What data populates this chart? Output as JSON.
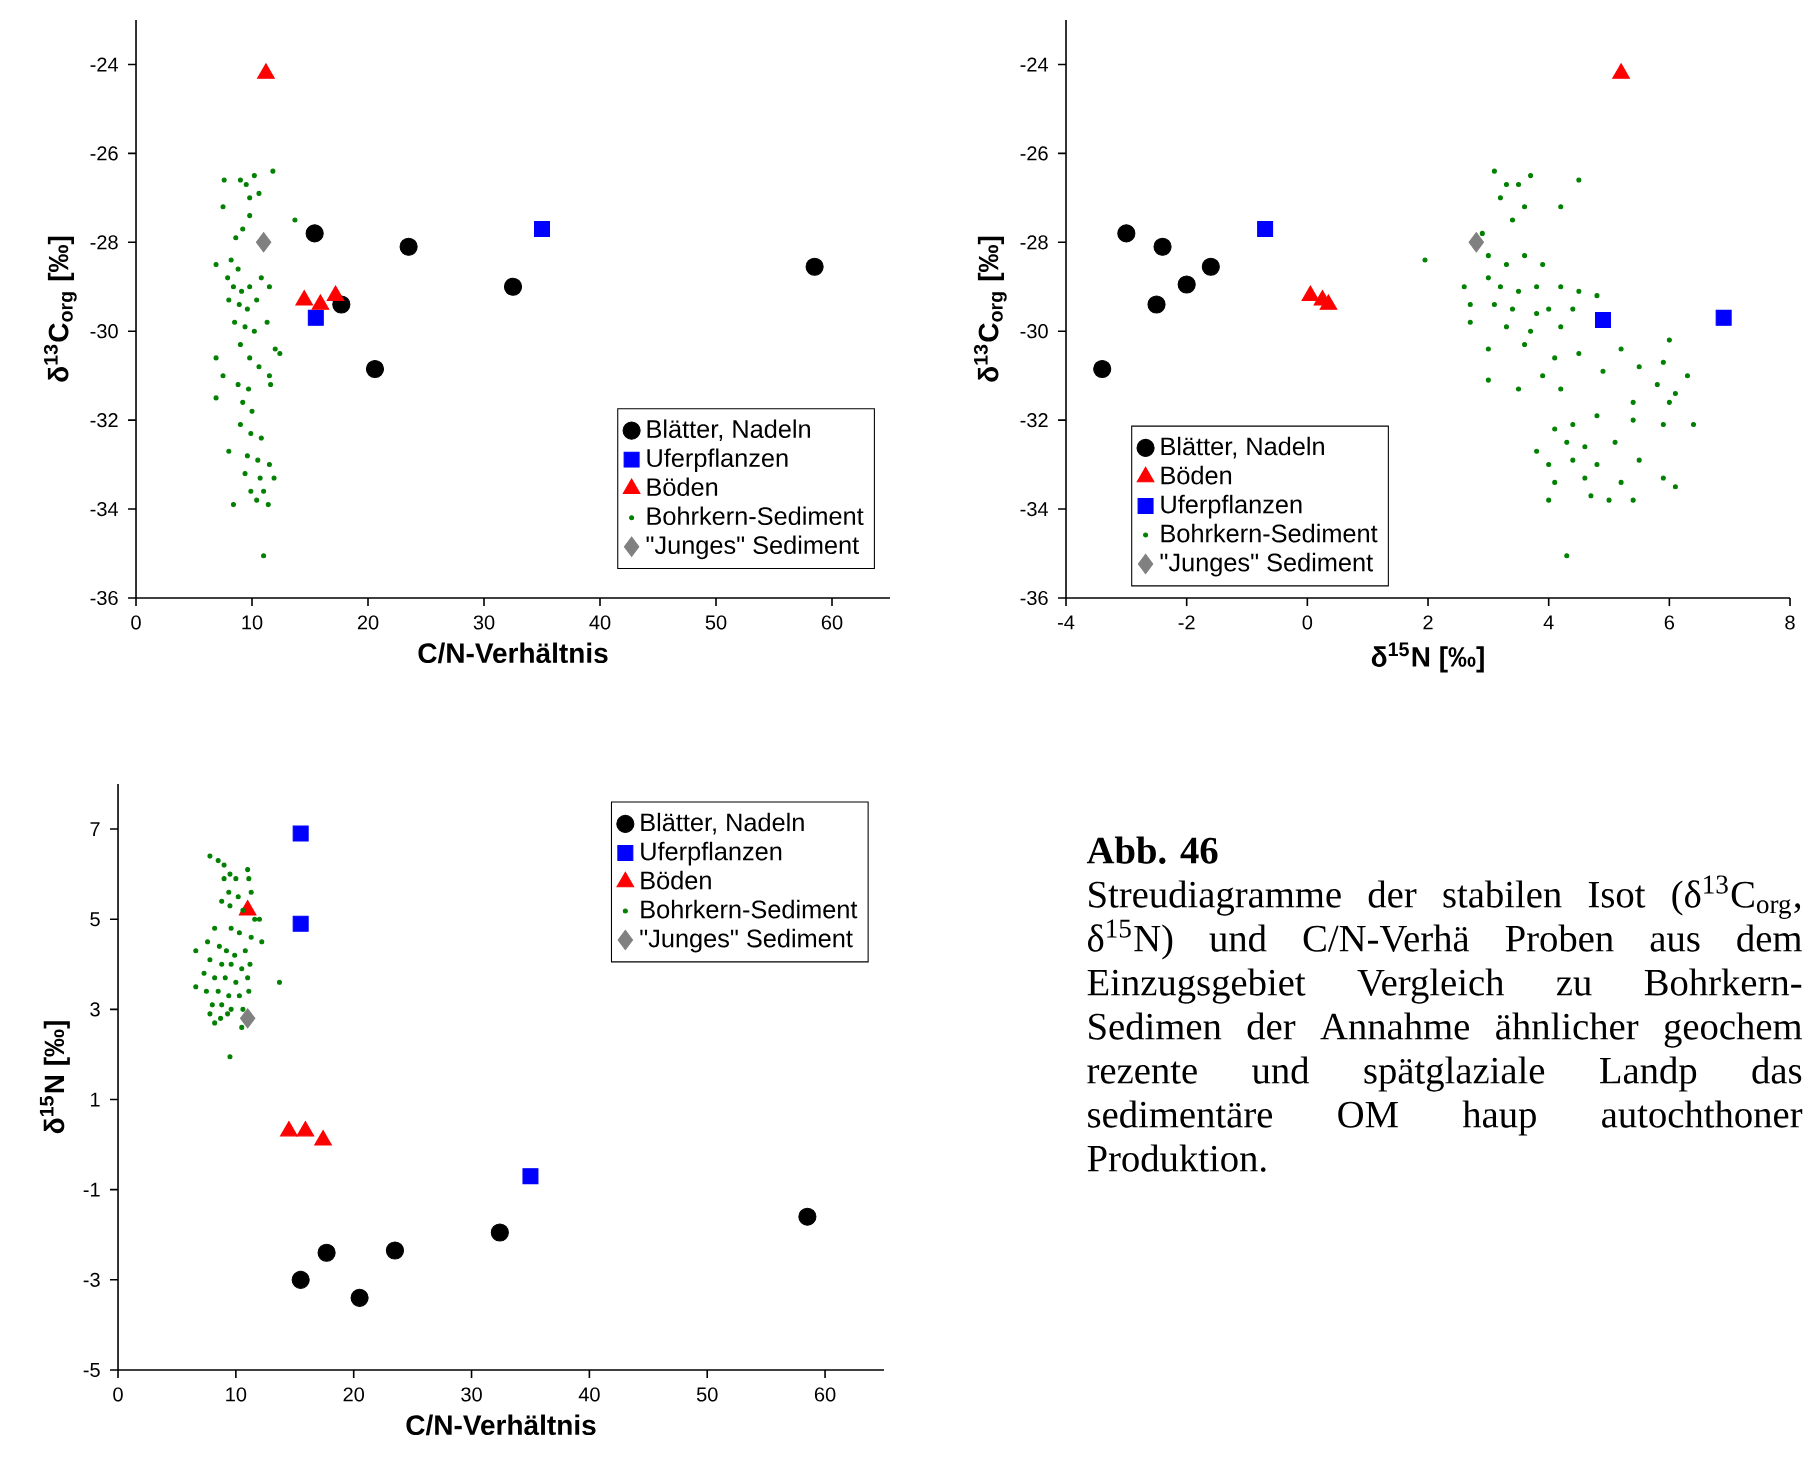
{
  "chart_data": [
    {
      "type": "scatter",
      "xlabel": "C/N-Verhältnis",
      "ylabel": "δ$^{13}$C$_{org}$ [‰]",
      "xlim": [
        0,
        65
      ],
      "xticks": [
        0,
        10,
        20,
        30,
        40,
        50,
        60
      ],
      "ylim": [
        -36,
        -23
      ],
      "yticks": [
        -36,
        -34,
        -32,
        -30,
        -28,
        -26,
        -24
      ],
      "legend": "bottom right",
      "series": [
        {
          "name": "Blätter, Nadeln",
          "color": "#000000",
          "marker": "circle",
          "x": [
            15.4,
            23.5,
            17.7,
            20.6,
            32.5,
            58.5
          ],
          "values": [
            -27.8,
            -28.1,
            -29.4,
            -30.85,
            -29.0,
            -28.55
          ]
        },
        {
          "name": "Uferpflanzen",
          "color": "#0000ff",
          "marker": "square",
          "x": [
            35,
            15.5
          ],
          "values": [
            -27.7,
            -29.7
          ]
        },
        {
          "name": "Böden",
          "color": "#ff0000",
          "marker": "triangle",
          "x": [
            11.2,
            14.5,
            15.9,
            17.2
          ],
          "values": [
            -24.2,
            -29.3,
            -29.4,
            -29.2
          ]
        },
        {
          "name": "Bohrkern-Sediment",
          "color": "#008000",
          "marker": "circle",
          "x": [
            7.6,
            9.0,
            9.5,
            10.2,
            11.8,
            9.8,
            7.5,
            10.6,
            13.7,
            9.8,
            8.6,
            9.2,
            6.9,
            8.2,
            8.8,
            7.9,
            8.4,
            9.1,
            9.8,
            10.8,
            8.0,
            8.9,
            9.6,
            10.4,
            11.5,
            8.5,
            9.4,
            10.2,
            11.3,
            12.0,
            12.4,
            6.9,
            9.0,
            9.8,
            10.6,
            11.5,
            7.5,
            8.8,
            9.7,
            11.6,
            6.9,
            9.2,
            10.0,
            9.0,
            9.9,
            10.8,
            8.0,
            9.6,
            10.5,
            11.5,
            9.4,
            10.7,
            11.9,
            9.9,
            11.0,
            10.4,
            8.4,
            11.4,
            11.0
          ],
          "values": [
            -26.6,
            -26.6,
            -26.7,
            -26.5,
            -26.4,
            -27.0,
            -27.2,
            -26.9,
            -27.5,
            -27.4,
            -27.9,
            -27.7,
            -28.5,
            -28.4,
            -28.6,
            -28.8,
            -29.0,
            -29.1,
            -29.0,
            -28.8,
            -29.3,
            -29.4,
            -29.5,
            -29.3,
            -29.0,
            -29.8,
            -29.9,
            -30.0,
            -29.8,
            -30.4,
            -30.5,
            -30.6,
            -30.3,
            -30.6,
            -30.8,
            -31.0,
            -31.0,
            -31.2,
            -31.3,
            -31.2,
            -31.5,
            -31.6,
            -31.8,
            -32.1,
            -32.3,
            -32.4,
            -32.7,
            -32.8,
            -32.9,
            -33.0,
            -33.2,
            -33.3,
            -33.3,
            -33.6,
            -33.6,
            -33.8,
            -33.9,
            -33.9,
            -35.05
          ]
        },
        {
          "name": "\"Junges\" Sediment",
          "color": "#808080",
          "marker": "diamond",
          "x": [
            11.0
          ],
          "values": [
            -28.0
          ]
        }
      ]
    },
    {
      "type": "scatter",
      "xlabel": "δ$^{15}$N [‰]",
      "ylabel": "δ$^{13}$C$_{org}$ [‰]",
      "xlim": [
        -4,
        8
      ],
      "xticks": [
        -4,
        -2,
        0,
        2,
        4,
        6,
        8
      ],
      "ylim": [
        -36,
        -23
      ],
      "yticks": [
        -36,
        -34,
        -32,
        -30,
        -28,
        -26,
        -24
      ],
      "legend": "bottom left",
      "series": [
        {
          "name": "Blätter, Nadeln",
          "color": "#000000",
          "marker": "circle",
          "x": [
            -3.0,
            -2.4,
            -2.5,
            -2.0,
            -1.6,
            -3.4
          ],
          "values": [
            -27.8,
            -28.1,
            -29.4,
            -28.95,
            -28.55,
            -30.85
          ]
        },
        {
          "name": "Böden",
          "color": "#ff0000",
          "marker": "triangle",
          "x": [
            5.2,
            0.05,
            0.25,
            0.35
          ],
          "values": [
            -24.2,
            -29.2,
            -29.3,
            -29.4
          ]
        },
        {
          "name": "Uferpflanzen",
          "color": "#0000ff",
          "marker": "square",
          "x": [
            -0.7,
            4.9,
            6.9
          ],
          "values": [
            -27.7,
            -29.75,
            -29.7
          ]
        },
        {
          "name": "Bohrkern-Sediment",
          "color": "#008000",
          "marker": "circle",
          "x": [
            3.1,
            3.3,
            3.7,
            3.5,
            4.5,
            3.2,
            3.6,
            4.2,
            3.4,
            2.9,
            1.95,
            3.0,
            3.3,
            3.6,
            3.9,
            2.6,
            3.0,
            3.2,
            3.5,
            3.8,
            4.2,
            4.5,
            4.8,
            2.7,
            3.1,
            3.4,
            3.8,
            4.0,
            4.4,
            2.7,
            3.3,
            3.7,
            4.2,
            3.0,
            3.6,
            4.1,
            4.5,
            5.2,
            4.9,
            5.5,
            6.0,
            5.9,
            3.9,
            3.0,
            3.5,
            4.2,
            5.8,
            6.1,
            6.3,
            5.4,
            6.0,
            6.4,
            4.1,
            4.4,
            4.8,
            5.4,
            5.9,
            4.3,
            4.6,
            5.1,
            3.8,
            4.0,
            4.4,
            4.8,
            5.5,
            4.1,
            4.6,
            5.2,
            5.9,
            6.1,
            4.0,
            4.7,
            5.0,
            5.4,
            4.3
          ],
          "values": [
            -26.4,
            -26.7,
            -26.5,
            -26.7,
            -26.6,
            -27.0,
            -27.2,
            -27.2,
            -27.5,
            -27.8,
            -28.4,
            -28.3,
            -28.5,
            -28.3,
            -28.5,
            -29.0,
            -28.8,
            -29.0,
            -29.1,
            -29.0,
            -29.0,
            -29.1,
            -29.2,
            -29.4,
            -29.4,
            -29.5,
            -29.6,
            -29.5,
            -29.5,
            -29.8,
            -29.9,
            -30.0,
            -29.9,
            -30.4,
            -30.3,
            -30.6,
            -30.5,
            -30.4,
            -30.9,
            -30.8,
            -30.2,
            -30.7,
            -31.0,
            -31.1,
            -31.3,
            -31.3,
            -31.2,
            -31.4,
            -31.0,
            -31.6,
            -31.6,
            -32.1,
            -32.2,
            -32.1,
            -31.9,
            -32.0,
            -32.1,
            -32.5,
            -32.6,
            -32.5,
            -32.7,
            -33.0,
            -32.9,
            -33.0,
            -32.9,
            -33.4,
            -33.3,
            -33.4,
            -33.3,
            -33.5,
            -33.8,
            -33.7,
            -33.8,
            -33.8,
            -35.05
          ]
        },
        {
          "name": "\"Junges\" Sediment",
          "color": "#808080",
          "marker": "diamond",
          "x": [
            2.8
          ],
          "values": [
            -28.0
          ]
        }
      ]
    },
    {
      "type": "scatter",
      "xlabel": "C/N-Verhältnis",
      "ylabel": "δ$^{15}$N [‰]",
      "xlim": [
        0,
        65
      ],
      "xticks": [
        0,
        10,
        20,
        30,
        40,
        50,
        60
      ],
      "ylim": [
        -5,
        8
      ],
      "yticks": [
        -5,
        -3,
        -1,
        1,
        3,
        5,
        7
      ],
      "legend": "top right",
      "series": [
        {
          "name": "Blätter, Nadeln",
          "color": "#000000",
          "marker": "circle",
          "x": [
            15.5,
            17.7,
            20.5,
            23.5,
            32.4,
            58.5
          ],
          "values": [
            -3.0,
            -2.4,
            -3.4,
            -2.35,
            -1.95,
            -1.6
          ]
        },
        {
          "name": "Uferpflanzen",
          "color": "#0000ff",
          "marker": "square",
          "x": [
            15.5,
            15.5,
            35
          ],
          "values": [
            6.9,
            4.9,
            -0.7
          ]
        },
        {
          "name": "Böden",
          "color": "#ff0000",
          "marker": "triangle",
          "x": [
            11.0,
            14.5,
            15.9,
            17.4
          ],
          "values": [
            5.2,
            0.3,
            0.3,
            0.1
          ]
        },
        {
          "name": "Bohrkern-Sediment",
          "color": "#008000",
          "marker": "circle",
          "x": [
            7.8,
            8.5,
            9.0,
            9.5,
            9.0,
            10.0,
            11.0,
            11.1,
            9.4,
            10.2,
            11.3,
            8.8,
            9.5,
            10.6,
            11.6,
            12.0,
            8.2,
            9.6,
            10.3,
            11.3,
            12.2,
            7.6,
            8.6,
            9.2,
            9.9,
            10.8,
            6.6,
            7.8,
            8.8,
            9.6,
            10.5,
            11.2,
            7.3,
            8.2,
            9.1,
            10.0,
            11.0,
            13.7,
            6.6,
            7.5,
            8.5,
            9.4,
            10.3,
            11.1,
            8.0,
            8.8,
            9.6,
            10.6,
            7.8,
            8.7,
            9.3,
            8.2,
            10.5,
            9.5
          ],
          "values": [
            6.4,
            6.3,
            6.2,
            6.0,
            5.9,
            5.9,
            6.1,
            5.9,
            5.6,
            5.5,
            5.6,
            5.4,
            5.3,
            5.2,
            5.0,
            5.0,
            4.8,
            4.8,
            4.7,
            4.6,
            4.5,
            4.5,
            4.4,
            4.3,
            4.2,
            4.3,
            4.3,
            4.1,
            4.0,
            4.0,
            3.9,
            4.0,
            3.8,
            3.7,
            3.7,
            3.6,
            3.7,
            3.6,
            3.5,
            3.4,
            3.4,
            3.3,
            3.3,
            3.4,
            3.1,
            3.1,
            3.0,
            3.0,
            2.9,
            2.8,
            2.9,
            2.7,
            2.6,
            1.95
          ]
        },
        {
          "name": "\"Junges\" Sediment",
          "color": "#808080",
          "marker": "diamond",
          "x": [
            11.0
          ],
          "values": [
            2.8
          ]
        }
      ]
    },
    {
      "type": "other",
      "title": "Abb. 46",
      "annotations": [
        "Streudiagramme der stabilen Isot (δ$^{13}$C$_{org}$, δ$^{15}$N) und C/N-Verhä Proben aus dem Einzugsgebiet Vergleich zu Bohrkern-Sedimen der Annahme ähnlicher geochem rezente und spätglaziale Landp das sedimentäre OM haup autochthoner Produktion."
      ]
    }
  ]
}
